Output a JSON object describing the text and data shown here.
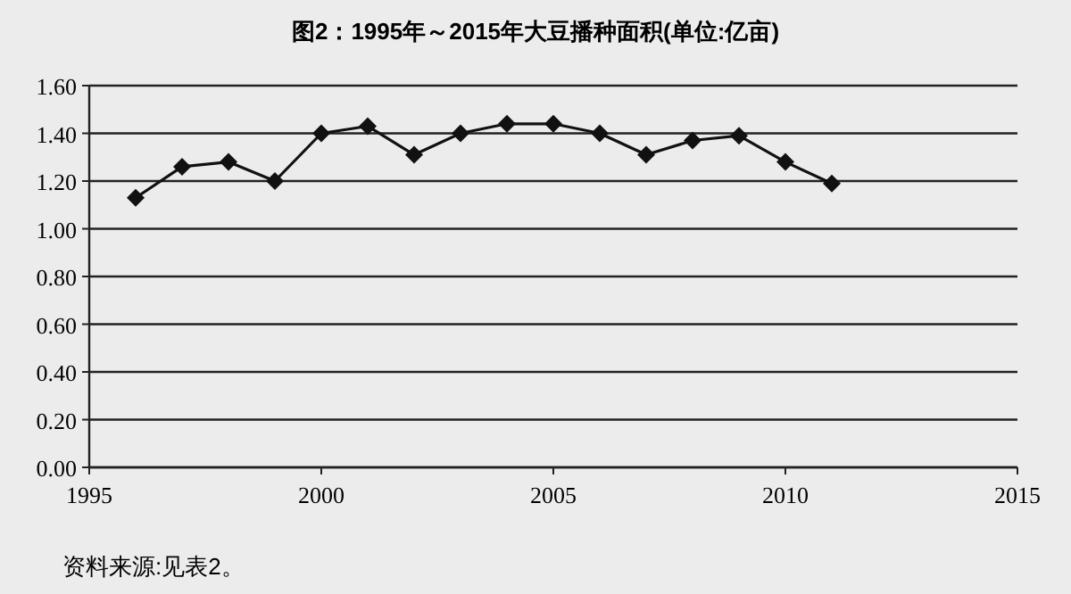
{
  "chart_data": {
    "type": "line",
    "title": "图2：1995年～2015年大豆播种面积(单位:亿亩)",
    "x": [
      1996,
      1997,
      1998,
      1999,
      2000,
      2001,
      2002,
      2003,
      2004,
      2005,
      2006,
      2007,
      2008,
      2009,
      2010,
      2011
    ],
    "series": [
      {
        "color": "#111111",
        "values": [
          1.13,
          1.26,
          1.28,
          1.2,
          1.4,
          1.43,
          1.31,
          1.4,
          1.44,
          1.44,
          1.4,
          1.31,
          1.37,
          1.39,
          1.28,
          1.19
        ]
      }
    ],
    "xlim": [
      1995,
      2015
    ],
    "xticks": [
      1995,
      2000,
      2005,
      2010,
      2015
    ],
    "ylim": [
      0,
      1.6
    ],
    "yticks": [
      {
        "value": 0,
        "label": "0.00"
      },
      {
        "value": 0.2,
        "label": "0.20"
      },
      {
        "value": 0.4,
        "label": "0.40"
      },
      {
        "value": 0.6,
        "label": "0.60"
      },
      {
        "value": 0.8,
        "label": "0.80"
      },
      {
        "value": 1.0,
        "label": "1.00"
      },
      {
        "value": 1.2,
        "label": "1.20"
      },
      {
        "value": 1.4,
        "label": "1.40"
      },
      {
        "value": 1.6,
        "label": "1.60"
      }
    ],
    "grid": "y",
    "marker": "diamond",
    "line_style": "solid",
    "annotations": [
      "资料来源:见表2。"
    ]
  }
}
